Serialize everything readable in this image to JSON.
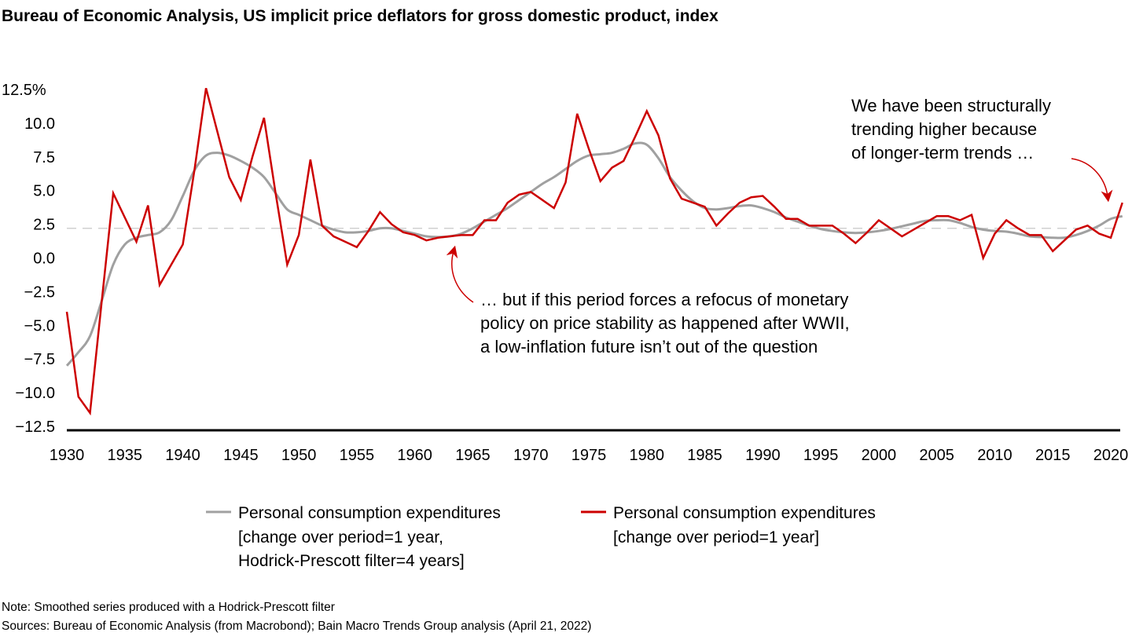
{
  "chart_data": {
    "type": "line",
    "title": "Bureau of Economic Analysis, US implicit price deflators for gross domestic product, index",
    "xlabel": "",
    "ylabel": "",
    "xlim": [
      1930,
      2021
    ],
    "ylim": [
      -12.5,
      12.5
    ],
    "grid": false,
    "y_ticks": [
      "12.5%",
      "10.0",
      "7.5",
      "5.0",
      "2.5",
      "0.0",
      "−2.5",
      "−5.0",
      "−7.5",
      "−10.0",
      "−12.5"
    ],
    "y_tick_values": [
      12.5,
      10,
      7.5,
      5,
      2.5,
      0,
      -2.5,
      -5,
      -7.5,
      -10,
      -12.5
    ],
    "x_ticks": [
      "1930",
      "1935",
      "1940",
      "1945",
      "1950",
      "1955",
      "1960",
      "1965",
      "1970",
      "1975",
      "1980",
      "1985",
      "1990",
      "1995",
      "2000",
      "2005",
      "2010",
      "2015",
      "2020"
    ],
    "reference_line": {
      "value": 2.2,
      "style": "dashed",
      "color": "#d0d0d0"
    },
    "x_start": 1930,
    "series": [
      {
        "name": "Personal consumption expenditures [change over period=1 year, Hodrick-Prescott filter=4 years]",
        "color": "#a0a0a0",
        "values": [
          -8.0,
          -7.0,
          -5.8,
          -3.2,
          -0.5,
          1.0,
          1.5,
          1.7,
          1.9,
          2.8,
          4.6,
          6.5,
          7.6,
          7.8,
          7.6,
          7.2,
          6.7,
          6.0,
          4.8,
          3.6,
          3.2,
          2.8,
          2.4,
          2.1,
          1.9,
          1.9,
          2.0,
          2.2,
          2.2,
          2.0,
          1.8,
          1.6,
          1.55,
          1.6,
          1.8,
          2.2,
          2.7,
          3.2,
          3.7,
          4.3,
          4.9,
          5.5,
          6.0,
          6.6,
          7.2,
          7.6,
          7.7,
          7.8,
          8.1,
          8.5,
          8.4,
          7.4,
          6.0,
          5.0,
          4.2,
          3.7,
          3.6,
          3.7,
          3.85,
          3.9,
          3.7,
          3.4,
          3.0,
          2.7,
          2.4,
          2.15,
          2.0,
          1.9,
          1.85,
          1.9,
          2.0,
          2.15,
          2.35,
          2.55,
          2.75,
          2.8,
          2.8,
          2.6,
          2.3,
          2.1,
          2.0,
          1.95,
          1.8,
          1.6,
          1.55,
          1.5,
          1.5,
          1.7,
          2.0,
          2.4,
          2.9,
          3.1
        ]
      },
      {
        "name": "Personal consumption expenditures [change over period=1 year]",
        "color": "#cc0000",
        "values": [
          -4.0,
          -10.3,
          -11.5,
          -3.3,
          4.8,
          3.0,
          1.2,
          3.9,
          -2.0,
          -0.5,
          1.0,
          6.5,
          12.6,
          9.3,
          6.0,
          4.3,
          7.5,
          10.4,
          4.8,
          -0.5,
          1.7,
          7.3,
          2.4,
          1.6,
          1.2,
          0.8,
          2.0,
          3.4,
          2.5,
          1.9,
          1.7,
          1.3,
          1.5,
          1.6,
          1.7,
          1.7,
          2.8,
          2.8,
          4.1,
          4.7,
          4.9,
          4.3,
          3.7,
          5.6,
          10.7,
          8.1,
          5.7,
          6.7,
          7.2,
          9.0,
          10.9,
          9.1,
          5.9,
          4.4,
          4.1,
          3.8,
          2.4,
          3.3,
          4.1,
          4.5,
          4.6,
          3.8,
          2.9,
          2.9,
          2.4,
          2.4,
          2.4,
          1.8,
          1.1,
          1.9,
          2.8,
          2.2,
          1.6,
          2.1,
          2.6,
          3.1,
          3.1,
          2.8,
          3.2,
          0.0,
          1.8,
          2.8,
          2.2,
          1.7,
          1.7,
          0.5,
          1.3,
          2.1,
          2.4,
          1.8,
          1.5,
          4.1
        ]
      }
    ],
    "legend_placement": "bottom"
  },
  "legend": [
    {
      "lines": [
        "Personal consumption expenditures",
        "[change over period=1 year,",
        "Hodrick-Prescott filter=4 years]"
      ]
    },
    {
      "lines": [
        "Personal consumption expenditures",
        "[change over period=1 year]"
      ]
    }
  ],
  "annotations": {
    "post_war": [
      "… but if this period forces a refocus of monetary",
      "policy on price stability as happened after WWII,",
      "a low-inflation future isn’t out of the question"
    ],
    "structural": [
      "We have been structurally",
      "trending higher because",
      "of longer-term trends …"
    ]
  },
  "notes": {
    "note": "Note: Smoothed series produced with a Hodrick-Prescott filter",
    "sources": "Sources: Bureau of Economic Analysis (from Macrobond); Bain Macro Trends Group analysis (April 21, 2022)"
  }
}
